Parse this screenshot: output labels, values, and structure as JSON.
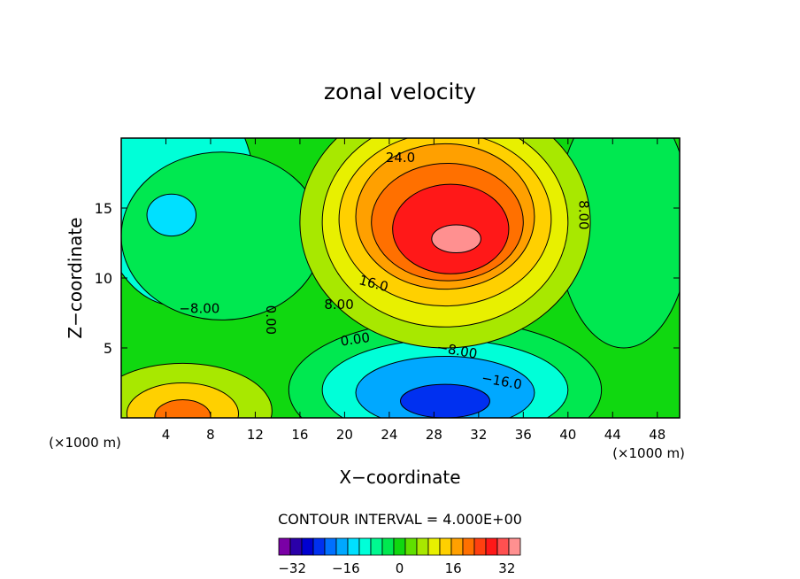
{
  "chart_data": {
    "type": "heatmap",
    "title": "zonal velocity",
    "xlabel": "X−coordinate",
    "ylabel": "Z−coordinate",
    "x_unit_left": "(×1000 m)",
    "x_unit_right": "(×1000 m)",
    "xlim": [
      0,
      50
    ],
    "ylim": [
      0,
      20
    ],
    "x_ticks": [
      "4",
      "8",
      "12",
      "16",
      "20",
      "24",
      "28",
      "32",
      "36",
      "40",
      "44",
      "48"
    ],
    "y_ticks": [
      "5",
      "10",
      "15"
    ],
    "contour_interval_text": "CONTOUR INTERVAL = 4.000E+00",
    "contour_interval": 4,
    "contour_labels": [
      "24.0",
      "16.0",
      "8.00",
      "0.00",
      "−8.00",
      "−8.00",
      "−16.0",
      "0.00",
      "8.00"
    ],
    "colorbar": {
      "min": -36,
      "max": 36,
      "tick_labels": [
        "−32",
        "−16",
        "0",
        "16",
        "32"
      ],
      "colors": [
        "#7a00a6",
        "#2a00a8",
        "#0000d0",
        "#0030f0",
        "#0070ff",
        "#00a8ff",
        "#00e0ff",
        "#00ffd8",
        "#00f890",
        "#00e850",
        "#10d810",
        "#60e000",
        "#a8e800",
        "#e8f000",
        "#ffd000",
        "#ffa000",
        "#ff7000",
        "#ff4010",
        "#ff1818",
        "#ff5050",
        "#ff9090"
      ]
    },
    "features": [
      {
        "x": 30,
        "z": 13,
        "value": 36
      },
      {
        "x": 29,
        "z": 14,
        "value": 28
      },
      {
        "x": 29,
        "z": 14.5,
        "value": 22
      },
      {
        "x": 5.5,
        "z": 0.5,
        "value": 20
      },
      {
        "x": 29,
        "z": 1.5,
        "value": -20
      },
      {
        "x": 25,
        "z": 2.5,
        "value": -10
      },
      {
        "x": 4.5,
        "z": 14.5,
        "value": -15
      },
      {
        "x": 7,
        "z": 12,
        "value": -6
      },
      {
        "x": 14,
        "z": 15,
        "value": 3
      },
      {
        "x": 46,
        "z": 14,
        "value": -2
      },
      {
        "x": 44,
        "z": 8,
        "value": -3
      },
      {
        "x": 25,
        "z": 6.5,
        "value": -5
      }
    ],
    "grid": false,
    "legend": "bottom colorbar"
  }
}
